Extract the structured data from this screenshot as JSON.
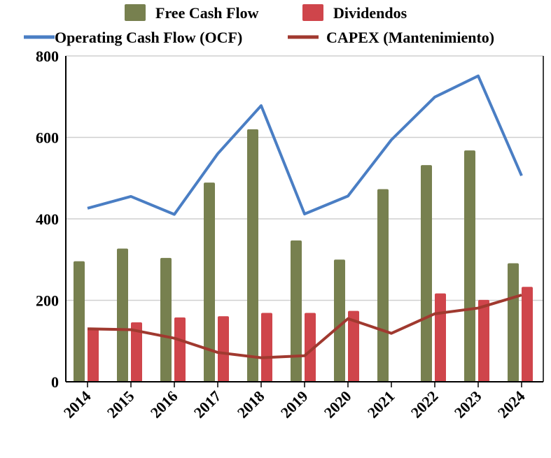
{
  "chart_data": {
    "type": "bar",
    "title": "",
    "xlabel": "",
    "ylabel": "",
    "ylim": [
      0,
      800
    ],
    "yticks": [
      0,
      200,
      400,
      600,
      800
    ],
    "grid": true,
    "legend_position": "top",
    "categories": [
      "2014",
      "2015",
      "2016",
      "2017",
      "2018",
      "2019",
      "2020",
      "2021",
      "2022",
      "2023",
      "2024"
    ],
    "series": [
      {
        "name": "Free Cash Flow",
        "kind": "bar",
        "color": "#77804F",
        "values": [
          296,
          327,
          304,
          489,
          620,
          347,
          300,
          473,
          532,
          568,
          291
        ]
      },
      {
        "name": "Dividendos",
        "kind": "bar",
        "color": "#CF454B",
        "values": [
          130,
          146,
          158,
          161,
          169,
          169,
          174,
          0,
          217,
          201,
          233
        ]
      },
      {
        "name": "Operating Cash Flow (OCF)",
        "kind": "line",
        "color": "#4A7EC4",
        "values": [
          426,
          455,
          411,
          560,
          678,
          412,
          456,
          594,
          699,
          751,
          506
        ]
      },
      {
        "name": "CAPEX (Mantenimiento)",
        "kind": "line",
        "color": "#A0392F",
        "values": [
          130,
          128,
          107,
          72,
          59,
          64,
          155,
          119,
          167,
          181,
          213
        ]
      }
    ]
  }
}
